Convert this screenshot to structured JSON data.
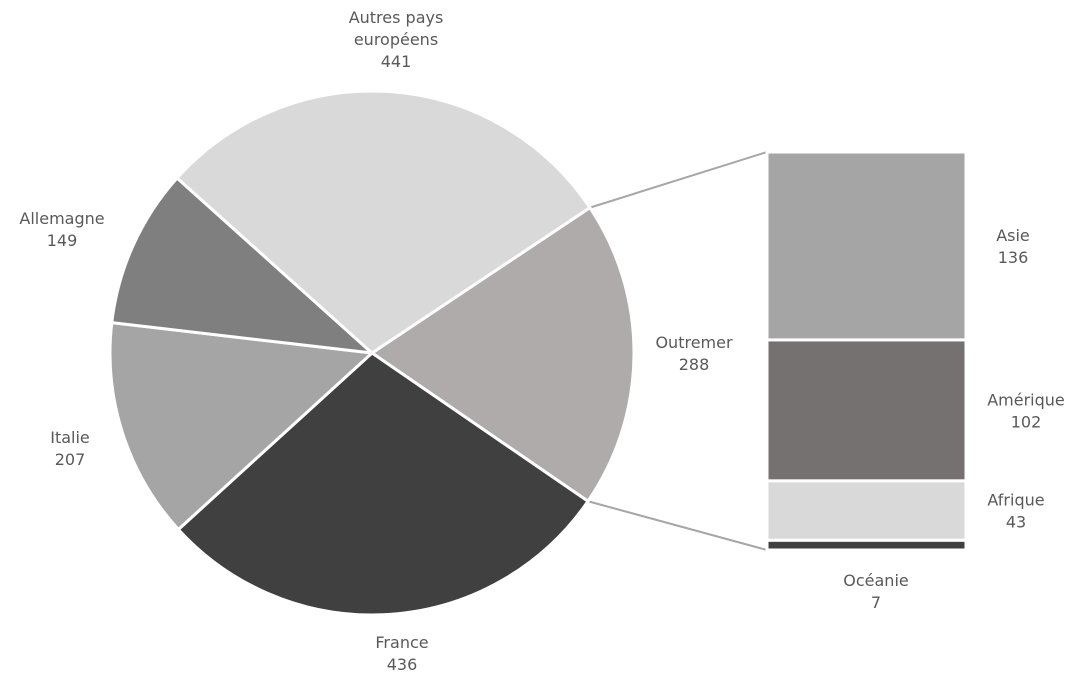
{
  "chart_data": {
    "type": "pie",
    "subtype": "pie-of-bar",
    "title": "",
    "pie": [
      {
        "label_lines": [
          "Autres pays",
          "européens"
        ],
        "value": 441,
        "value_text": "441",
        "color": "#d9d9d9"
      },
      {
        "label_lines": [
          "Outremer"
        ],
        "value": 288,
        "value_text": "288",
        "color": "#afabab"
      },
      {
        "label_lines": [
          "France"
        ],
        "value": 436,
        "value_text": "436",
        "color": "#404040"
      },
      {
        "label_lines": [
          "Italie"
        ],
        "value": 207,
        "value_text": "207",
        "color": "#a5a5a5"
      },
      {
        "label_lines": [
          "Allemagne"
        ],
        "value": 149,
        "value_text": "149",
        "color": "#7f7f7f"
      }
    ],
    "breakdown_of": "Outremer",
    "bar": [
      {
        "label": "Asie",
        "value": 136,
        "value_text": "136",
        "color": "#a5a5a5"
      },
      {
        "label": "Amérique",
        "value": 102,
        "value_text": "102",
        "color": "#767171"
      },
      {
        "label": "Afrique",
        "value": 43,
        "value_text": "43",
        "color": "#d9d9d9"
      },
      {
        "label": "Océanie",
        "value": 7,
        "value_text": "7",
        "color": "#404040"
      }
    ],
    "legend": "none",
    "connector_color": "#a6a6a6",
    "label_color": "#595959"
  }
}
